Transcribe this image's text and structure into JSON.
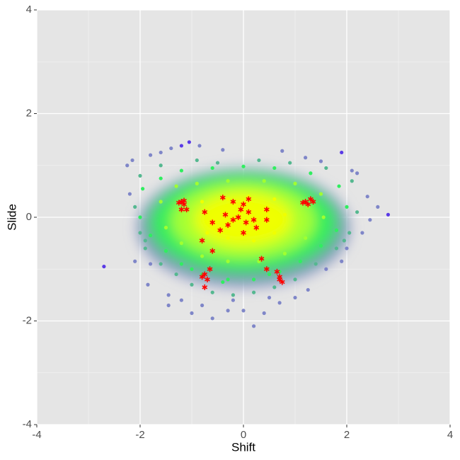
{
  "chart_data": {
    "type": "scatter",
    "x_label": "Shift",
    "y_label": "Slide",
    "xlim": [
      -4,
      4
    ],
    "ylim": [
      -4,
      4
    ],
    "xticks": [
      -4,
      -2,
      0,
      2,
      4
    ],
    "yticks": [
      -4,
      -2,
      0,
      2,
      4
    ],
    "xminor": [
      -3,
      -1,
      1,
      3
    ],
    "yminor": [
      -3,
      -1,
      1,
      3
    ],
    "grid": true,
    "series": [
      {
        "color": "#5a3ae6",
        "marker": "circle",
        "x": [
          -2.7,
          -1.05,
          2.8,
          1.9,
          -1.2
        ],
        "values": [
          -0.95,
          1.45,
          0.05,
          1.25,
          1.38
        ]
      },
      {
        "color": "#7f86c8",
        "marker": "circle",
        "x": [
          -2.2,
          -2.25,
          -2.15,
          -1.8,
          -1.6,
          -1.4,
          -0.85,
          -0.4,
          0.75,
          1.2,
          1.5,
          2.1,
          2.2,
          2.4,
          2.3,
          2.0,
          1.9,
          1.6,
          -2.1,
          -1.8,
          -1.85,
          -1.45,
          -1.45,
          -1.0,
          -0.6,
          -0.3,
          0.0,
          0.4,
          0.2,
          0.7,
          1.0,
          1.25,
          -1.2,
          -0.8,
          0.5,
          -0.2,
          2.6,
          2.45
        ],
        "values": [
          0.45,
          1.0,
          1.1,
          1.2,
          1.25,
          1.33,
          1.38,
          1.3,
          1.28,
          1.15,
          1.08,
          0.9,
          0.85,
          0.4,
          -0.3,
          -0.6,
          -0.85,
          -1.0,
          -0.85,
          -0.9,
          -1.3,
          -1.5,
          -1.7,
          -1.85,
          -1.95,
          -1.8,
          -1.8,
          -1.85,
          -2.1,
          -1.65,
          -1.55,
          -1.4,
          -1.6,
          -1.7,
          -1.55,
          -1.6,
          0.2,
          -0.05
        ]
      },
      {
        "color": "#55b890",
        "marker": "circle",
        "x": [
          -2.1,
          -2.0,
          -1.9,
          -1.6,
          -1.3,
          -1.0,
          -0.6,
          -0.2,
          0.2,
          0.6,
          1.0,
          1.4,
          1.8,
          2.05,
          2.2,
          2.1,
          1.6,
          0.9,
          -0.9,
          -1.6,
          -2.0,
          -0.5,
          0.3,
          -1.9,
          1.95
        ],
        "values": [
          0.2,
          -0.3,
          -0.6,
          -0.9,
          -1.1,
          -1.3,
          -1.45,
          -1.5,
          -1.45,
          -1.35,
          -1.2,
          -0.9,
          -0.6,
          -0.3,
          0.1,
          0.7,
          0.95,
          1.05,
          1.1,
          1.0,
          0.8,
          1.05,
          1.1,
          -0.45,
          -0.45
        ]
      },
      {
        "color": "#30ee60",
        "marker": "circle",
        "x": [
          -1.95,
          -2.0,
          -1.8,
          -1.5,
          -1.2,
          -0.8,
          -0.3,
          0.2,
          0.7,
          1.1,
          1.5,
          1.8,
          2.0,
          1.85,
          1.3,
          0.6,
          0.0,
          -0.6,
          -1.2,
          -1.6,
          -0.4,
          0.5,
          -1.0
        ],
        "values": [
          0.55,
          0.0,
          -0.35,
          -0.65,
          -0.9,
          -1.1,
          -1.2,
          -1.2,
          -1.05,
          -0.85,
          -0.55,
          -0.25,
          0.2,
          0.6,
          0.85,
          0.95,
          0.98,
          0.95,
          0.9,
          0.75,
          -1.25,
          -1.1,
          -1.0
        ]
      },
      {
        "color": "#a0ff30",
        "marker": "circle",
        "x": [
          -1.6,
          -1.5,
          -1.2,
          -0.8,
          -0.3,
          0.3,
          0.8,
          1.2,
          1.55,
          1.5,
          1.0,
          0.4,
          -0.3,
          -0.9,
          -1.3,
          1.25,
          -1.2
        ],
        "values": [
          0.3,
          -0.2,
          -0.5,
          -0.75,
          -0.85,
          -0.85,
          -0.7,
          -0.4,
          0.0,
          0.45,
          0.65,
          0.7,
          0.7,
          0.65,
          0.6,
          0.2,
          0.1
        ]
      },
      {
        "color": "#f0ff00",
        "marker": "circle",
        "x": [
          -0.8,
          -0.5,
          -0.7,
          -0.3,
          0.2,
          0.6,
          0.8,
          0.6,
          0.1,
          -0.3,
          0.0,
          0.3,
          -0.2
        ],
        "values": [
          0.3,
          0.0,
          -0.3,
          -0.4,
          -0.45,
          -0.3,
          0.05,
          0.35,
          0.4,
          0.35,
          0.0,
          0.1,
          -0.1
        ]
      },
      {
        "color": "#ff0000",
        "marker": "star",
        "x": [
          -1.2,
          -1.15,
          -1.25,
          -1.1,
          -1.2,
          -1.15,
          1.2,
          1.25,
          1.3,
          1.35,
          1.15,
          -0.4,
          -0.2,
          0.1,
          0.0,
          -0.05,
          0.1,
          -0.1,
          0.2,
          0.45,
          0.45,
          0.25,
          0.0,
          -0.2,
          -0.3,
          -0.45,
          -0.6,
          -0.35,
          0.05,
          -0.75,
          -0.8,
          -0.6,
          -0.75,
          -0.8,
          -0.7,
          -0.75,
          -0.65,
          0.65,
          0.7,
          0.75,
          0.7,
          0.45,
          0.35
        ],
        "values": [
          0.3,
          0.25,
          0.28,
          0.15,
          0.15,
          0.32,
          0.3,
          0.25,
          0.35,
          0.3,
          0.28,
          0.38,
          0.3,
          0.35,
          0.25,
          0.15,
          0.1,
          0.0,
          -0.05,
          0.15,
          -0.05,
          -0.2,
          -0.3,
          -0.05,
          -0.15,
          -0.25,
          -0.1,
          0.05,
          -0.1,
          0.1,
          -0.45,
          -0.65,
          -1.1,
          -1.15,
          -1.2,
          -1.35,
          -1.0,
          -1.05,
          -1.15,
          -1.25,
          -1.2,
          -1.0,
          -0.8
        ]
      }
    ]
  }
}
